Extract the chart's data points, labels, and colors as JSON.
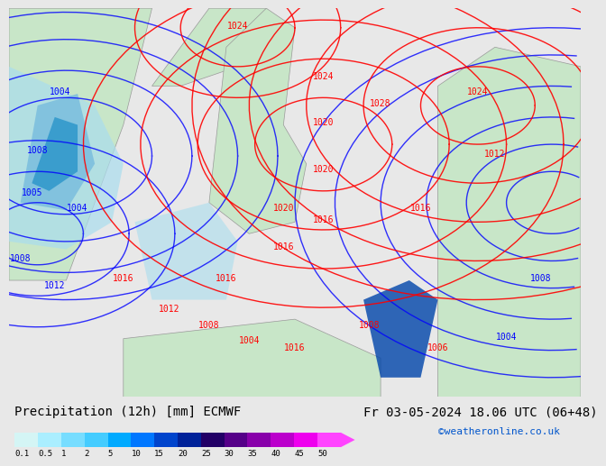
{
  "title_left": "Precipitation (12h) [mm] ECMWF",
  "title_right": "Fr 03-05-2024 18.06 UTC (06+48)",
  "credit": "©weatheronline.co.uk",
  "colorbar_labels": [
    "0.1",
    "0.5",
    "1",
    "2",
    "5",
    "10",
    "15",
    "20",
    "25",
    "30",
    "35",
    "40",
    "45",
    "50"
  ],
  "colorbar_colors": [
    "#d4f5f5",
    "#aaeeff",
    "#77ddff",
    "#44ccff",
    "#00aaff",
    "#0077ff",
    "#0044cc",
    "#002299",
    "#220066",
    "#550088",
    "#8800aa",
    "#bb00cc",
    "#ee00ee",
    "#ff44ff"
  ],
  "background_color": "#e8e8e8",
  "map_background": "#f0f0f0",
  "title_fontsize": 10,
  "credit_color": "#0055cc",
  "credit_fontsize": 8
}
